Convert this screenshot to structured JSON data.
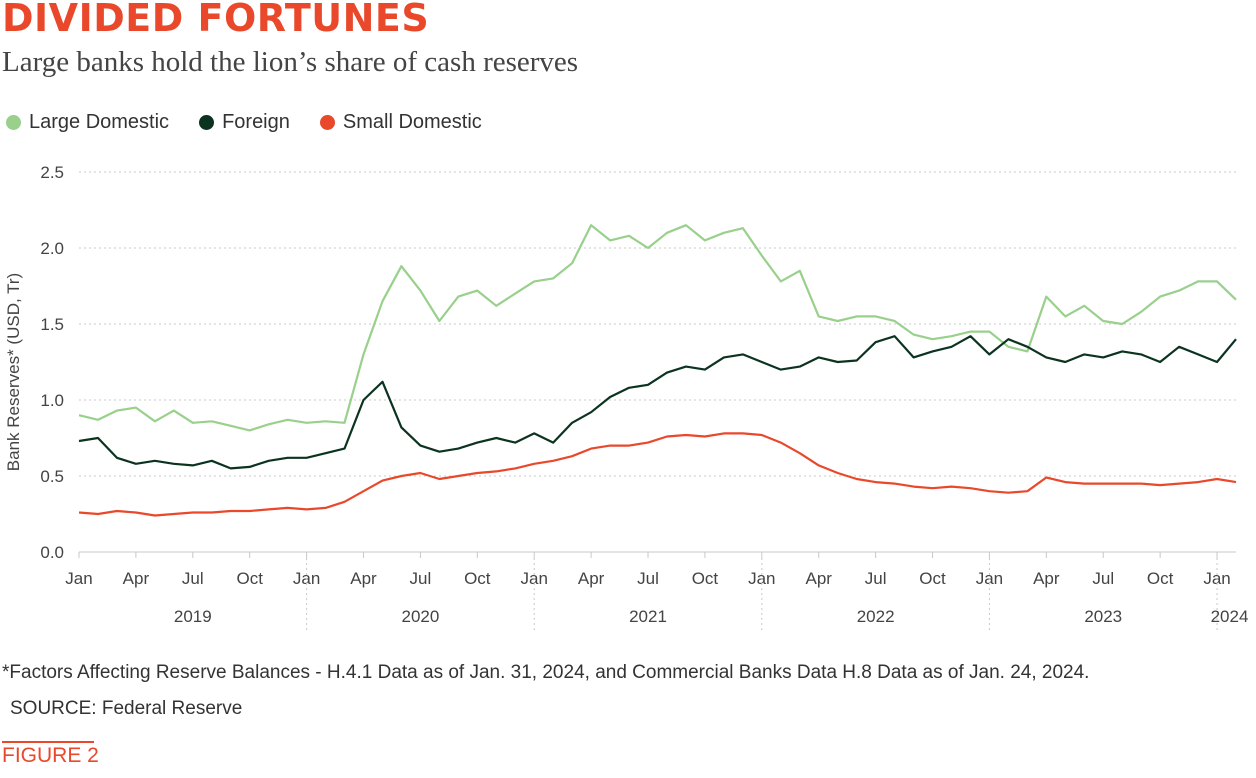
{
  "header": {
    "title": "DIVIDED FORTUNES",
    "subtitle": "Large banks hold the lion’s share of cash reserves"
  },
  "footer": {
    "footnote": "*Factors Affecting Reserve Balances - H.4.1 Data as of Jan. 31, 2024, and Commercial Banks Data H.8 Data as of Jan. 24, 2024.",
    "source": "SOURCE: Federal Reserve",
    "figure_label": "FIGURE 2"
  },
  "colors": {
    "accent": "#e9482b",
    "large_domestic": "#98d08c",
    "foreign": "#0c3320",
    "small_domestic": "#e9482b",
    "grid": "#c8c8c8",
    "axis_text": "#444444"
  },
  "chart_data": {
    "type": "line",
    "title": "",
    "ylabel": "Bank Reserves* (USD, Tr)",
    "ylim": [
      0,
      2.5
    ],
    "yticks": [
      0.0,
      0.5,
      1.0,
      1.5,
      2.0,
      2.5
    ],
    "ytick_labels": [
      "0.0",
      "0.5",
      "1.0",
      "1.5",
      "2.0",
      "2.5"
    ],
    "xlim": [
      "2019-01",
      "2024-02"
    ],
    "x_month_ticks": [
      {
        "x": "2019-01",
        "label": "Jan"
      },
      {
        "x": "2019-04",
        "label": "Apr"
      },
      {
        "x": "2019-07",
        "label": "Jul"
      },
      {
        "x": "2019-10",
        "label": "Oct"
      },
      {
        "x": "2020-01",
        "label": "Jan"
      },
      {
        "x": "2020-04",
        "label": "Apr"
      },
      {
        "x": "2020-07",
        "label": "Jul"
      },
      {
        "x": "2020-10",
        "label": "Oct"
      },
      {
        "x": "2021-01",
        "label": "Jan"
      },
      {
        "x": "2021-04",
        "label": "Apr"
      },
      {
        "x": "2021-07",
        "label": "Jul"
      },
      {
        "x": "2021-10",
        "label": "Oct"
      },
      {
        "x": "2022-01",
        "label": "Jan"
      },
      {
        "x": "2022-04",
        "label": "Apr"
      },
      {
        "x": "2022-07",
        "label": "Jul"
      },
      {
        "x": "2022-10",
        "label": "Oct"
      },
      {
        "x": "2023-01",
        "label": "Jan"
      },
      {
        "x": "2023-04",
        "label": "Apr"
      },
      {
        "x": "2023-07",
        "label": "Jul"
      },
      {
        "x": "2023-10",
        "label": "Oct"
      },
      {
        "x": "2024-01",
        "label": "Jan"
      }
    ],
    "x_years": [
      "2019",
      "2020",
      "2021",
      "2022",
      "2023",
      "2024"
    ],
    "grid": true,
    "legend": "top-left",
    "series": [
      {
        "name": "Large Domestic",
        "color": "#98d08c",
        "points": [
          [
            "2019-01",
            0.9
          ],
          [
            "2019-02",
            0.87
          ],
          [
            "2019-03",
            0.93
          ],
          [
            "2019-04",
            0.95
          ],
          [
            "2019-05",
            0.86
          ],
          [
            "2019-06",
            0.93
          ],
          [
            "2019-07",
            0.85
          ],
          [
            "2019-08",
            0.86
          ],
          [
            "2019-09",
            0.83
          ],
          [
            "2019-10",
            0.8
          ],
          [
            "2019-11",
            0.84
          ],
          [
            "2019-12",
            0.87
          ],
          [
            "2020-01",
            0.85
          ],
          [
            "2020-02",
            0.86
          ],
          [
            "2020-03",
            0.85
          ],
          [
            "2020-04",
            1.3
          ],
          [
            "2020-05",
            1.65
          ],
          [
            "2020-06",
            1.88
          ],
          [
            "2020-07",
            1.72
          ],
          [
            "2020-08",
            1.52
          ],
          [
            "2020-09",
            1.68
          ],
          [
            "2020-10",
            1.72
          ],
          [
            "2020-11",
            1.62
          ],
          [
            "2020-12",
            1.7
          ],
          [
            "2021-01",
            1.78
          ],
          [
            "2021-02",
            1.8
          ],
          [
            "2021-03",
            1.9
          ],
          [
            "2021-04",
            2.15
          ],
          [
            "2021-05",
            2.05
          ],
          [
            "2021-06",
            2.08
          ],
          [
            "2021-07",
            2.0
          ],
          [
            "2021-08",
            2.1
          ],
          [
            "2021-09",
            2.15
          ],
          [
            "2021-10",
            2.05
          ],
          [
            "2021-11",
            2.1
          ],
          [
            "2021-12",
            2.13
          ],
          [
            "2022-01",
            1.95
          ],
          [
            "2022-02",
            1.78
          ],
          [
            "2022-03",
            1.85
          ],
          [
            "2022-04",
            1.55
          ],
          [
            "2022-05",
            1.52
          ],
          [
            "2022-06",
            1.55
          ],
          [
            "2022-07",
            1.55
          ],
          [
            "2022-08",
            1.52
          ],
          [
            "2022-09",
            1.43
          ],
          [
            "2022-10",
            1.4
          ],
          [
            "2022-11",
            1.42
          ],
          [
            "2022-12",
            1.45
          ],
          [
            "2023-01",
            1.45
          ],
          [
            "2023-02",
            1.35
          ],
          [
            "2023-03",
            1.32
          ],
          [
            "2023-04",
            1.68
          ],
          [
            "2023-05",
            1.55
          ],
          [
            "2023-06",
            1.62
          ],
          [
            "2023-07",
            1.52
          ],
          [
            "2023-08",
            1.5
          ],
          [
            "2023-09",
            1.58
          ],
          [
            "2023-10",
            1.68
          ],
          [
            "2023-11",
            1.72
          ],
          [
            "2023-12",
            1.78
          ],
          [
            "2024-01",
            1.78
          ],
          [
            "2024-02",
            1.66
          ]
        ]
      },
      {
        "name": "Foreign",
        "color": "#0c3320",
        "points": [
          [
            "2019-01",
            0.73
          ],
          [
            "2019-02",
            0.75
          ],
          [
            "2019-03",
            0.62
          ],
          [
            "2019-04",
            0.58
          ],
          [
            "2019-05",
            0.6
          ],
          [
            "2019-06",
            0.58
          ],
          [
            "2019-07",
            0.57
          ],
          [
            "2019-08",
            0.6
          ],
          [
            "2019-09",
            0.55
          ],
          [
            "2019-10",
            0.56
          ],
          [
            "2019-11",
            0.6
          ],
          [
            "2019-12",
            0.62
          ],
          [
            "2020-01",
            0.62
          ],
          [
            "2020-02",
            0.65
          ],
          [
            "2020-03",
            0.68
          ],
          [
            "2020-04",
            1.0
          ],
          [
            "2020-05",
            1.12
          ],
          [
            "2020-06",
            0.82
          ],
          [
            "2020-07",
            0.7
          ],
          [
            "2020-08",
            0.66
          ],
          [
            "2020-09",
            0.68
          ],
          [
            "2020-10",
            0.72
          ],
          [
            "2020-11",
            0.75
          ],
          [
            "2020-12",
            0.72
          ],
          [
            "2021-01",
            0.78
          ],
          [
            "2021-02",
            0.72
          ],
          [
            "2021-03",
            0.85
          ],
          [
            "2021-04",
            0.92
          ],
          [
            "2021-05",
            1.02
          ],
          [
            "2021-06",
            1.08
          ],
          [
            "2021-07",
            1.1
          ],
          [
            "2021-08",
            1.18
          ],
          [
            "2021-09",
            1.22
          ],
          [
            "2021-10",
            1.2
          ],
          [
            "2021-11",
            1.28
          ],
          [
            "2021-12",
            1.3
          ],
          [
            "2022-01",
            1.25
          ],
          [
            "2022-02",
            1.2
          ],
          [
            "2022-03",
            1.22
          ],
          [
            "2022-04",
            1.28
          ],
          [
            "2022-05",
            1.25
          ],
          [
            "2022-06",
            1.26
          ],
          [
            "2022-07",
            1.38
          ],
          [
            "2022-08",
            1.42
          ],
          [
            "2022-09",
            1.28
          ],
          [
            "2022-10",
            1.32
          ],
          [
            "2022-11",
            1.35
          ],
          [
            "2022-12",
            1.42
          ],
          [
            "2023-01",
            1.3
          ],
          [
            "2023-02",
            1.4
          ],
          [
            "2023-03",
            1.35
          ],
          [
            "2023-04",
            1.28
          ],
          [
            "2023-05",
            1.25
          ],
          [
            "2023-06",
            1.3
          ],
          [
            "2023-07",
            1.28
          ],
          [
            "2023-08",
            1.32
          ],
          [
            "2023-09",
            1.3
          ],
          [
            "2023-10",
            1.25
          ],
          [
            "2023-11",
            1.35
          ],
          [
            "2023-12",
            1.3
          ],
          [
            "2024-01",
            1.25
          ],
          [
            "2024-02",
            1.4
          ]
        ]
      },
      {
        "name": "Small Domestic",
        "color": "#e9482b",
        "points": [
          [
            "2019-01",
            0.26
          ],
          [
            "2019-02",
            0.25
          ],
          [
            "2019-03",
            0.27
          ],
          [
            "2019-04",
            0.26
          ],
          [
            "2019-05",
            0.24
          ],
          [
            "2019-06",
            0.25
          ],
          [
            "2019-07",
            0.26
          ],
          [
            "2019-08",
            0.26
          ],
          [
            "2019-09",
            0.27
          ],
          [
            "2019-10",
            0.27
          ],
          [
            "2019-11",
            0.28
          ],
          [
            "2019-12",
            0.29
          ],
          [
            "2020-01",
            0.28
          ],
          [
            "2020-02",
            0.29
          ],
          [
            "2020-03",
            0.33
          ],
          [
            "2020-04",
            0.4
          ],
          [
            "2020-05",
            0.47
          ],
          [
            "2020-06",
            0.5
          ],
          [
            "2020-07",
            0.52
          ],
          [
            "2020-08",
            0.48
          ],
          [
            "2020-09",
            0.5
          ],
          [
            "2020-10",
            0.52
          ],
          [
            "2020-11",
            0.53
          ],
          [
            "2020-12",
            0.55
          ],
          [
            "2021-01",
            0.58
          ],
          [
            "2021-02",
            0.6
          ],
          [
            "2021-03",
            0.63
          ],
          [
            "2021-04",
            0.68
          ],
          [
            "2021-05",
            0.7
          ],
          [
            "2021-06",
            0.7
          ],
          [
            "2021-07",
            0.72
          ],
          [
            "2021-08",
            0.76
          ],
          [
            "2021-09",
            0.77
          ],
          [
            "2021-10",
            0.76
          ],
          [
            "2021-11",
            0.78
          ],
          [
            "2021-12",
            0.78
          ],
          [
            "2022-01",
            0.77
          ],
          [
            "2022-02",
            0.72
          ],
          [
            "2022-03",
            0.65
          ],
          [
            "2022-04",
            0.57
          ],
          [
            "2022-05",
            0.52
          ],
          [
            "2022-06",
            0.48
          ],
          [
            "2022-07",
            0.46
          ],
          [
            "2022-08",
            0.45
          ],
          [
            "2022-09",
            0.43
          ],
          [
            "2022-10",
            0.42
          ],
          [
            "2022-11",
            0.43
          ],
          [
            "2022-12",
            0.42
          ],
          [
            "2023-01",
            0.4
          ],
          [
            "2023-02",
            0.39
          ],
          [
            "2023-03",
            0.4
          ],
          [
            "2023-04",
            0.49
          ],
          [
            "2023-05",
            0.46
          ],
          [
            "2023-06",
            0.45
          ],
          [
            "2023-07",
            0.45
          ],
          [
            "2023-08",
            0.45
          ],
          [
            "2023-09",
            0.45
          ],
          [
            "2023-10",
            0.44
          ],
          [
            "2023-11",
            0.45
          ],
          [
            "2023-12",
            0.46
          ],
          [
            "2024-01",
            0.48
          ],
          [
            "2024-02",
            0.46
          ]
        ]
      }
    ]
  }
}
